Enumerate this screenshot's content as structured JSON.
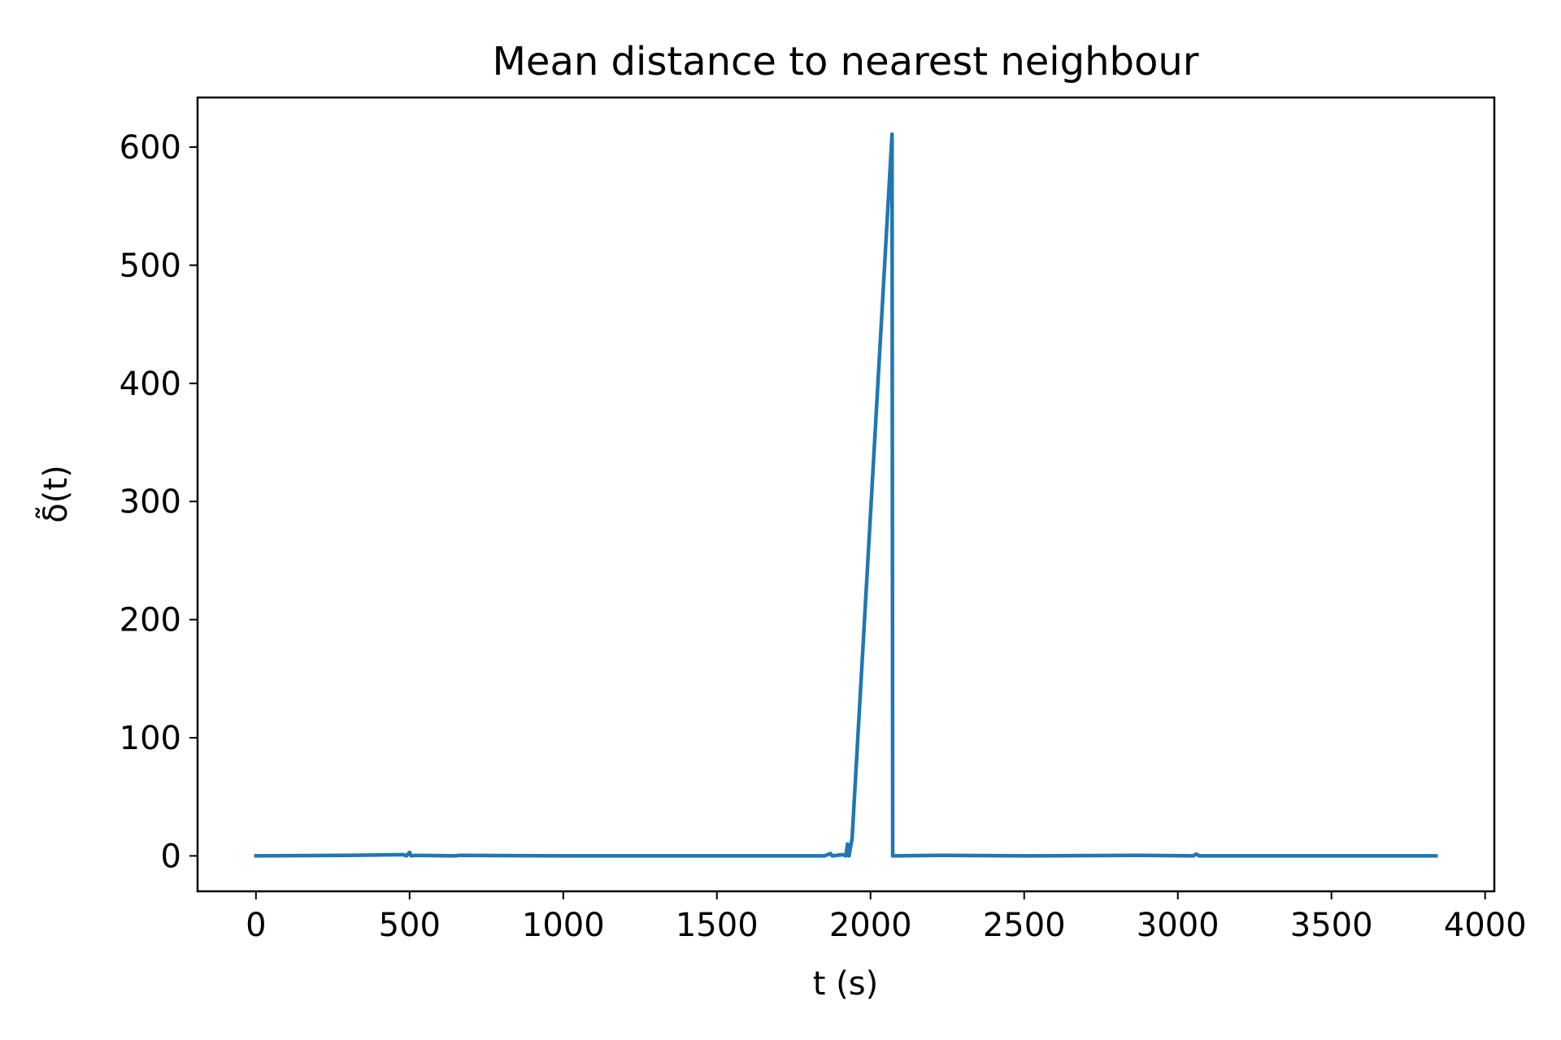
{
  "chart_data": {
    "type": "line",
    "title": "Mean distance to nearest neighbour",
    "xlabel": "t (s)",
    "ylabel": "δ̃(t)",
    "xlim": [
      -190,
      4030
    ],
    "ylim": [
      -30,
      642
    ],
    "xticks": [
      0,
      500,
      1000,
      1500,
      2000,
      2500,
      3000,
      3500,
      4000
    ],
    "yticks": [
      0,
      100,
      200,
      300,
      400,
      500,
      600
    ],
    "grid": false,
    "series": [
      {
        "color": "#1f77b4",
        "x": [
          0,
          300,
          480,
          490,
          500,
          505,
          520,
          650,
          660,
          1000,
          1500,
          1850,
          1870,
          1875,
          1910,
          1920,
          1925,
          1930,
          1940,
          2070,
          2072,
          2080,
          2240,
          2500,
          2880,
          3050,
          3060,
          3070,
          3500,
          3840
        ],
        "y": [
          0,
          0.5,
          1,
          0,
          3,
          0,
          0.5,
          0,
          0.5,
          0,
          0,
          0,
          2,
          0,
          1,
          0,
          10,
          0,
          15,
          611,
          0,
          0,
          0.5,
          0,
          0.5,
          0,
          1.5,
          0,
          0,
          0
        ]
      }
    ]
  }
}
